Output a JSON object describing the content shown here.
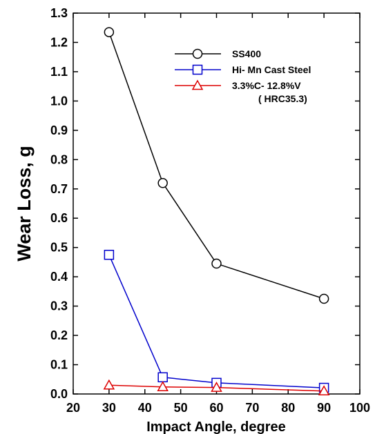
{
  "chart_data": {
    "type": "line",
    "xlabel": "Impact Angle, degree",
    "ylabel": "Wear Loss,  g",
    "xlim": [
      20,
      100
    ],
    "ylim": [
      0,
      1.3
    ],
    "xticks": [
      20,
      30,
      40,
      50,
      60,
      70,
      80,
      90,
      100
    ],
    "yticks": [
      0.0,
      0.1,
      0.2,
      0.3,
      0.4,
      0.5,
      0.6,
      0.7,
      0.8,
      0.9,
      1.0,
      1.1,
      1.2,
      1.3
    ],
    "xtick_labels": [
      "20",
      "30",
      "40",
      "50",
      "60",
      "70",
      "80",
      "90",
      "100"
    ],
    "ytick_labels": [
      "0.0",
      "0.1",
      "0.2",
      "0.3",
      "0.4",
      "0.5",
      "0.6",
      "0.7",
      "0.8",
      "0.9",
      "1.0",
      "1.1",
      "1.2",
      "1.3"
    ],
    "grid": false,
    "legend_position": "top-right",
    "series": [
      {
        "name": "SS400",
        "marker": "circle",
        "color": "#000000",
        "x": [
          30,
          45,
          60,
          90
        ],
        "y": [
          1.235,
          0.72,
          0.445,
          0.325
        ]
      },
      {
        "name": "Hi- Mn Cast Steel",
        "marker": "square",
        "color": "#0000cc",
        "x": [
          30,
          45,
          60,
          90
        ],
        "y": [
          0.475,
          0.057,
          0.038,
          0.021
        ]
      },
      {
        "name": "3.3%C- 12.8%V",
        "name_line2": "( HRC35.3)",
        "marker": "triangle",
        "color": "#dd0000",
        "x": [
          30,
          45,
          60,
          90
        ],
        "y": [
          0.03,
          0.024,
          0.022,
          0.01
        ]
      }
    ]
  }
}
